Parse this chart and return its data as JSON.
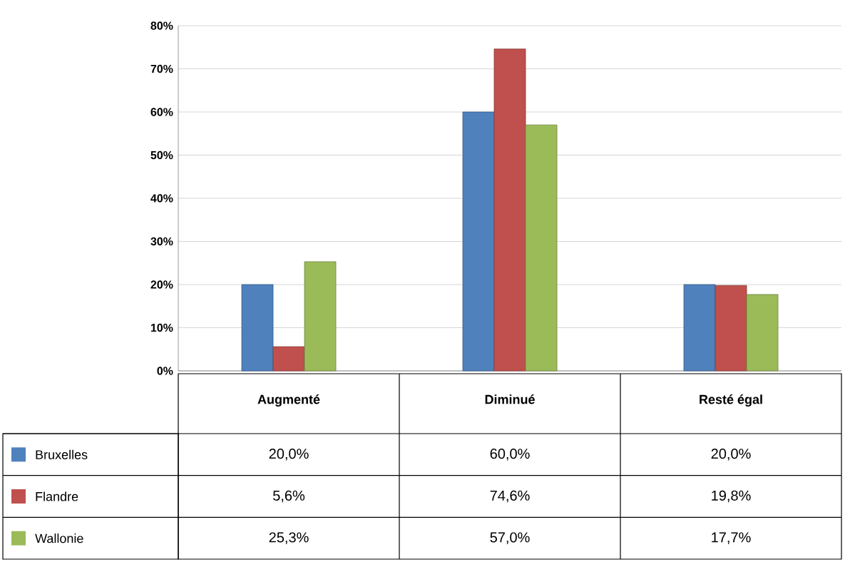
{
  "chart_data": {
    "type": "bar",
    "categories": [
      "Augmenté",
      "Diminué",
      "Resté égal"
    ],
    "series": [
      {
        "name": "Bruxelles",
        "color": "#4f81bd",
        "values": [
          20.0,
          60.0,
          20.0
        ],
        "value_labels": [
          "20,0%",
          "60,0%",
          "20,0%"
        ]
      },
      {
        "name": "Flandre",
        "color": "#c0504d",
        "values": [
          5.6,
          74.6,
          19.8
        ],
        "value_labels": [
          "5,6%",
          "74,6%",
          "19,8%"
        ]
      },
      {
        "name": "Wallonie",
        "color": "#9bbb59",
        "values": [
          25.3,
          57.0,
          17.7
        ],
        "value_labels": [
          "25,3%",
          "57,0%",
          "17,7%"
        ]
      }
    ],
    "ylim": [
      0,
      80
    ],
    "yticks": [
      {
        "value": 0,
        "label": "0%"
      },
      {
        "value": 10,
        "label": "10%"
      },
      {
        "value": 20,
        "label": "20%"
      },
      {
        "value": 30,
        "label": "30%"
      },
      {
        "value": 40,
        "label": "40%"
      },
      {
        "value": 50,
        "label": "50%"
      },
      {
        "value": 60,
        "label": "60%"
      },
      {
        "value": 70,
        "label": "70%"
      },
      {
        "value": 80,
        "label": "80%"
      }
    ],
    "grid": "y",
    "legend": "bottom left"
  }
}
